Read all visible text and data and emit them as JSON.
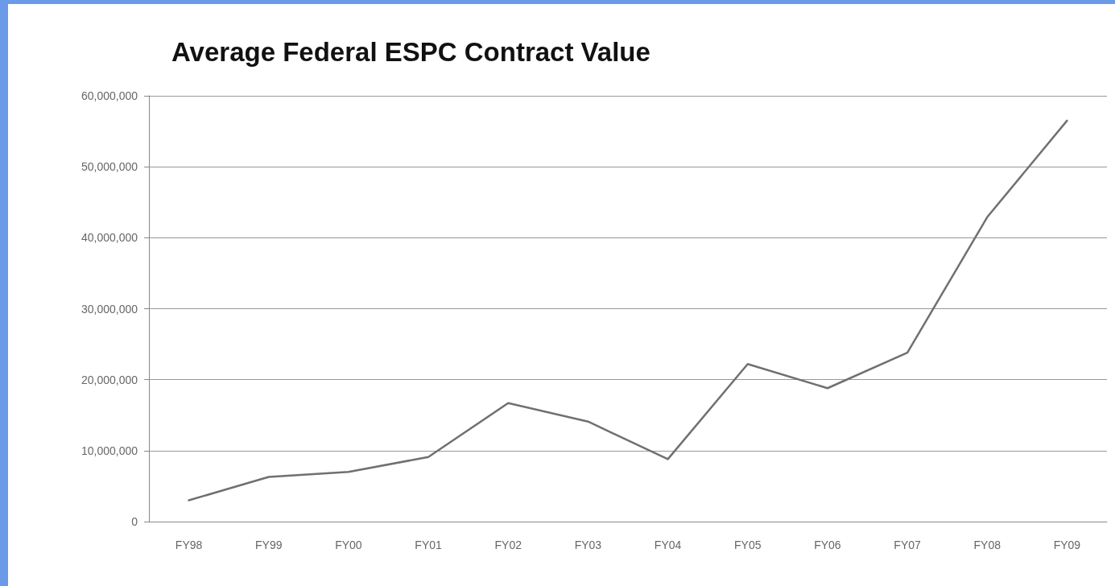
{
  "chart_data": {
    "type": "line",
    "title": "Average Federal ESPC Contract Value",
    "categories": [
      "FY98",
      "FY99",
      "FY00",
      "FY01",
      "FY02",
      "FY03",
      "FY04",
      "FY05",
      "FY06",
      "FY07",
      "FY08",
      "FY09"
    ],
    "series": [
      {
        "color": "#707070",
        "values": [
          3000000,
          6300000,
          7000000,
          9100000,
          16700000,
          14100000,
          8800000,
          22200000,
          18800000,
          23800000,
          42900000,
          56500000
        ]
      }
    ],
    "ylim": [
      0,
      60000000
    ],
    "yticks": [
      {
        "value": 0,
        "label": "0"
      },
      {
        "value": 10000000,
        "label": "10,000,000"
      },
      {
        "value": 20000000,
        "label": "20,000,000"
      },
      {
        "value": 30000000,
        "label": "30,000,000"
      },
      {
        "value": 40000000,
        "label": "40,000,000"
      },
      {
        "value": 50000000,
        "label": "50,000,000"
      },
      {
        "value": 60000000,
        "label": "60,000,000"
      }
    ],
    "grid": "y",
    "marker": "none",
    "line_style": "solid"
  }
}
